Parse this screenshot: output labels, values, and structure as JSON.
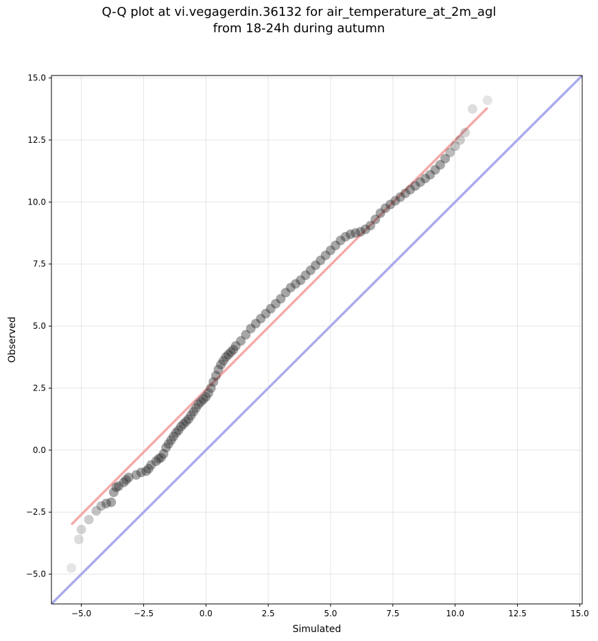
{
  "chart_data": {
    "type": "scatter",
    "title_line1": "Q-Q plot at vi.vegagerdin.36132 for air_temperature_at_2m_agl",
    "title_line2": "from 18-24h during autumn",
    "xlabel": "Simulated",
    "ylabel": "Observed",
    "xlim": [
      -6.2,
      15.1
    ],
    "ylim": [
      -6.2,
      15.1
    ],
    "xticks": [
      -5.0,
      -2.5,
      0.0,
      2.5,
      5.0,
      7.5,
      10.0,
      12.5,
      15.0
    ],
    "yticks": [
      -5.0,
      -2.5,
      0.0,
      2.5,
      5.0,
      7.5,
      10.0,
      12.5,
      15.0
    ],
    "xtick_labels": [
      "−5.0",
      "−2.5",
      "0.0",
      "2.5",
      "5.0",
      "7.5",
      "10.0",
      "12.5",
      "15.0"
    ],
    "ytick_labels": [
      "−5.0",
      "−2.5",
      "0.0",
      "2.5",
      "5.0",
      "7.5",
      "10.0",
      "12.5",
      "15.0"
    ],
    "grid": true,
    "reference_line": {
      "from": [
        -6.2,
        -6.2
      ],
      "to": [
        15.1,
        15.1
      ],
      "color": "#aaaaee"
    },
    "fit_line": {
      "from": [
        -5.4,
        -3.0
      ],
      "to": [
        11.3,
        13.8
      ],
      "color": "#f4a0a0"
    },
    "points": {
      "x": [
        -5.4,
        -5.1,
        -5.0,
        -4.7,
        -4.4,
        -4.2,
        -4.0,
        -3.8,
        -3.7,
        -3.6,
        -3.5,
        -3.3,
        -3.2,
        -3.1,
        -2.8,
        -2.6,
        -2.4,
        -2.3,
        -2.2,
        -2.0,
        -1.9,
        -1.8,
        -1.7,
        -1.6,
        -1.5,
        -1.4,
        -1.3,
        -1.2,
        -1.1,
        -1.0,
        -0.9,
        -0.8,
        -0.7,
        -0.6,
        -0.5,
        -0.4,
        -0.3,
        -0.2,
        -0.1,
        0.0,
        0.1,
        0.2,
        0.3,
        0.4,
        0.5,
        0.6,
        0.7,
        0.8,
        0.9,
        1.0,
        1.1,
        1.2,
        1.4,
        1.6,
        1.8,
        2.0,
        2.2,
        2.4,
        2.6,
        2.8,
        3.0,
        3.2,
        3.4,
        3.6,
        3.8,
        4.0,
        4.2,
        4.4,
        4.6,
        4.8,
        5.0,
        5.2,
        5.4,
        5.6,
        5.8,
        6.0,
        6.2,
        6.4,
        6.6,
        6.8,
        7.0,
        7.2,
        7.4,
        7.6,
        7.8,
        8.0,
        8.2,
        8.4,
        8.6,
        8.8,
        9.0,
        9.2,
        9.4,
        9.6,
        9.8,
        10.0,
        10.2,
        10.4,
        10.7,
        11.3
      ],
      "y": [
        -4.75,
        -3.6,
        -3.2,
        -2.8,
        -2.45,
        -2.25,
        -2.15,
        -2.1,
        -1.7,
        -1.5,
        -1.45,
        -1.3,
        -1.2,
        -1.1,
        -1.0,
        -0.9,
        -0.85,
        -0.75,
        -0.6,
        -0.45,
        -0.35,
        -0.3,
        -0.15,
        0.1,
        0.25,
        0.4,
        0.55,
        0.7,
        0.8,
        0.95,
        1.05,
        1.15,
        1.25,
        1.4,
        1.55,
        1.7,
        1.85,
        1.95,
        2.05,
        2.15,
        2.3,
        2.5,
        2.75,
        3.0,
        3.25,
        3.45,
        3.6,
        3.75,
        3.85,
        3.95,
        4.05,
        4.2,
        4.4,
        4.65,
        4.9,
        5.1,
        5.3,
        5.5,
        5.7,
        5.9,
        6.1,
        6.35,
        6.55,
        6.7,
        6.85,
        7.05,
        7.25,
        7.45,
        7.65,
        7.85,
        8.05,
        8.25,
        8.45,
        8.6,
        8.7,
        8.75,
        8.8,
        8.9,
        9.05,
        9.3,
        9.55,
        9.75,
        9.9,
        10.05,
        10.2,
        10.35,
        10.5,
        10.65,
        10.8,
        10.95,
        11.1,
        11.3,
        11.5,
        11.75,
        12.0,
        12.25,
        12.5,
        12.8,
        13.75,
        14.1
      ]
    }
  }
}
